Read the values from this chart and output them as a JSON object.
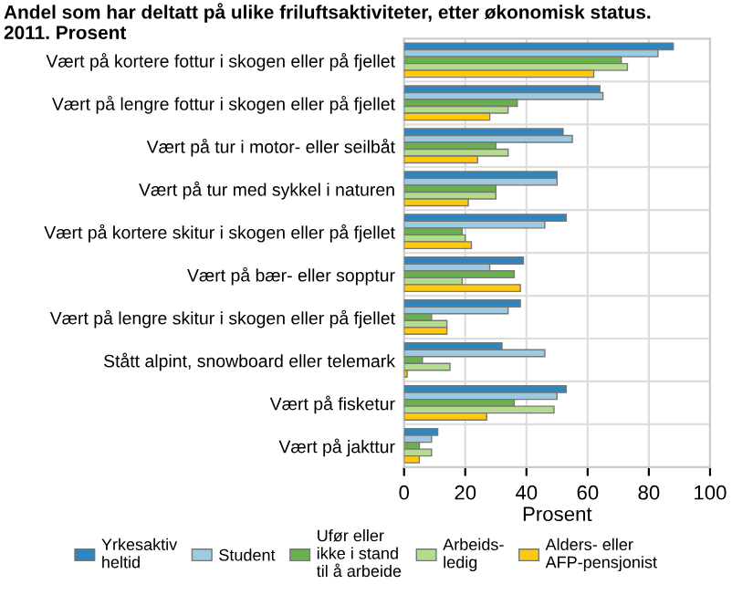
{
  "chart_data": {
    "type": "bar",
    "orientation": "horizontal",
    "title": "Andel som har deltatt på ulike friluftsaktiviteter, etter økonomisk status.\n2011. Prosent",
    "xlabel": "Prosent",
    "categories": [
      "Vært på kortere fottur i skogen eller på fjellet",
      "Vært på lengre fottur i skogen eller på fjellet",
      "Vært på tur i motor- eller seilbåt",
      "Vært på tur med sykkel i naturen",
      "Vært på kortere skitur i skogen eller på fjellet",
      "Vært på bær- eller sopptur",
      "Vært på lengre skitur i skogen eller på fjellet",
      "Stått alpint, snowboard eller telemark",
      "Vært på fisketur",
      "Vært på jakttur"
    ],
    "series": [
      {
        "name": "Yrkesaktiv\nheltid",
        "color": "#2e86c1",
        "values": [
          88,
          64,
          52,
          50,
          53,
          39,
          38,
          32,
          53,
          11
        ]
      },
      {
        "name": "Student",
        "color": "#9ecae1",
        "values": [
          83,
          65,
          55,
          50,
          46,
          28,
          34,
          46,
          50,
          9
        ]
      },
      {
        "name": "Ufør eller\nikke i stand\ntil å arbeide",
        "color": "#6ab04c",
        "values": [
          71,
          37,
          30,
          30,
          19,
          36,
          9,
          6,
          36,
          5
        ]
      },
      {
        "name": "Arbeids-\nledig",
        "color": "#b5dc8e",
        "values": [
          73,
          34,
          34,
          30,
          20,
          19,
          14,
          15,
          49,
          9
        ]
      },
      {
        "name": "Alders- eller\nAFP-pensjonist",
        "color": "#ffc90e",
        "values": [
          62,
          28,
          24,
          21,
          22,
          38,
          14,
          1,
          27,
          5
        ]
      }
    ],
    "xlim": [
      0,
      100
    ],
    "xticks": [
      0,
      20,
      40,
      60,
      80,
      100
    ],
    "grid": true,
    "legend": "bottom"
  }
}
